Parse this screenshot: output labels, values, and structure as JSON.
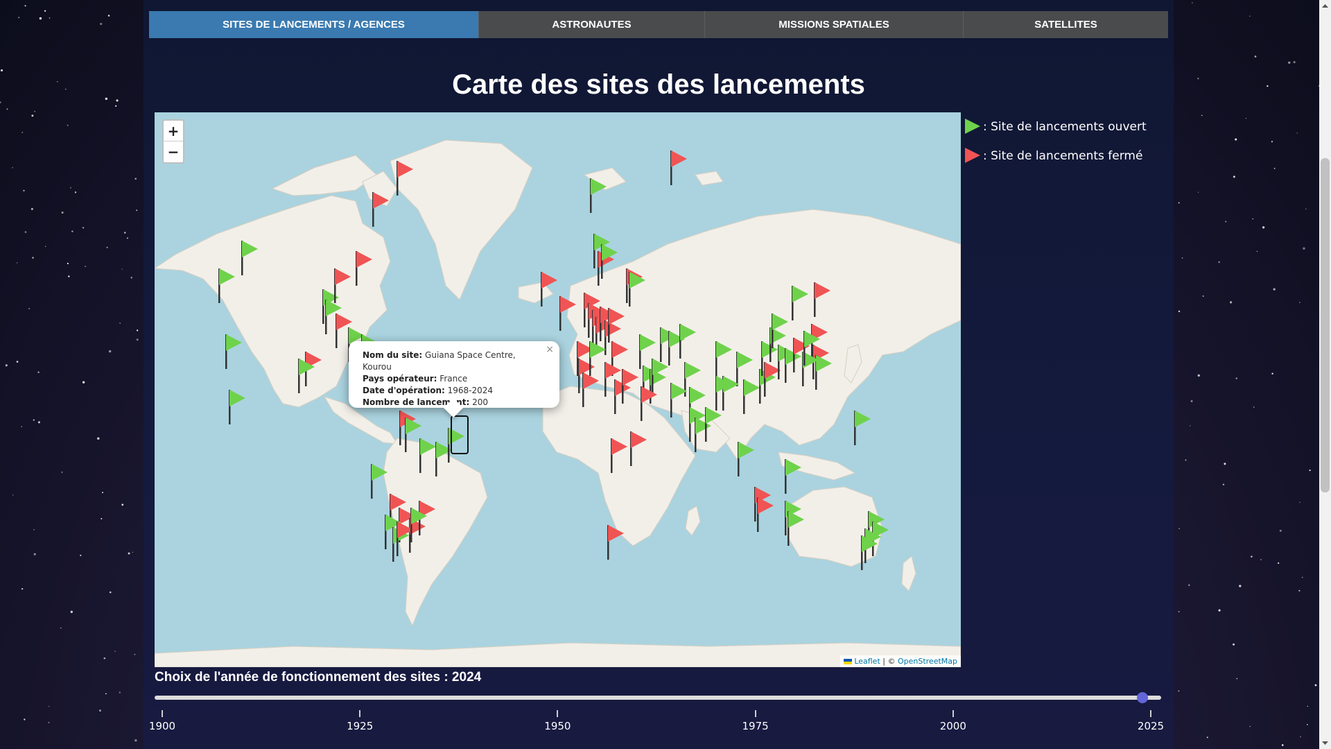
{
  "tabs": [
    {
      "label": "SITES DE LANCEMENTS / AGENCES",
      "active": true
    },
    {
      "label": "ASTRONAUTES",
      "active": false
    },
    {
      "label": "MISSIONS SPATIALES",
      "active": false
    },
    {
      "label": "SATELLITES",
      "active": false
    }
  ],
  "page_title": "Carte des sites des lancements",
  "map": {
    "zoom_in": "+",
    "zoom_out": "−",
    "attribution_leaflet": "Leaflet",
    "attribution_sep": " | © ",
    "attribution_osm": "OpenStreetMap",
    "popup": {
      "name_label": "Nom du site:",
      "name_value": "Guiana Space Centre, Kourou",
      "country_label": "Pays opérateur:",
      "country_value": "France",
      "dates_label": "Date d'opération:",
      "dates_value": "1968-2024",
      "count_label": "Nombre de lancement:",
      "count_value": "200",
      "close": "×"
    }
  },
  "legend": {
    "open_label": ": Site de lancements ouvert",
    "closed_label": ": Site de lancements fermé",
    "open_color": "#6fd24b",
    "closed_color": "#f05454"
  },
  "year_selector": {
    "label": "Choix de l'année de fonctionnement des sites : 2024",
    "value": 2024,
    "min": 1900,
    "max": 2025,
    "ticks": [
      "1900",
      "1925",
      "1950",
      "1975",
      "2000",
      "2025"
    ]
  }
}
